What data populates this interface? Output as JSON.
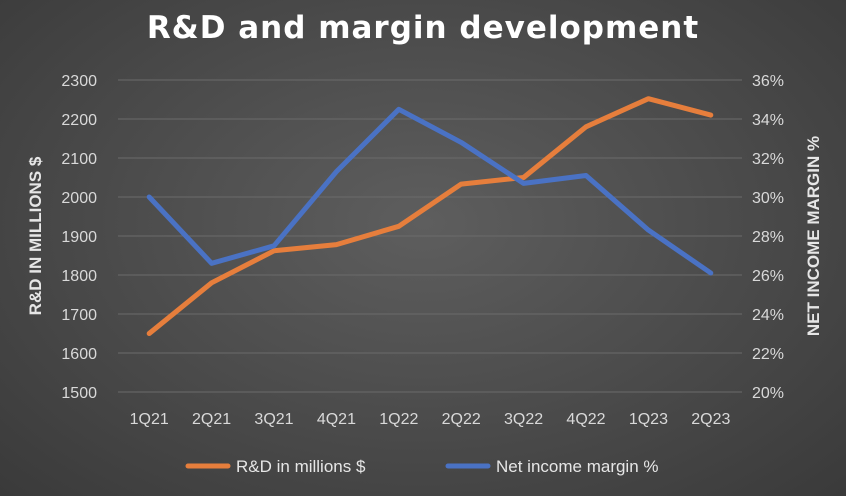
{
  "chart_data": {
    "type": "line",
    "title": "R&D and margin development",
    "categories": [
      "1Q21",
      "2Q21",
      "3Q21",
      "4Q21",
      "1Q22",
      "2Q22",
      "3Q22",
      "4Q22",
      "1Q23",
      "2Q23"
    ],
    "ylabel_left": "R&D IN MILLIONS $",
    "ylabel_right": "NET INCOME MARGIN %",
    "ylim_left": [
      1500,
      2300
    ],
    "ylim_right": [
      20,
      36
    ],
    "yticks_left": [
      "1500",
      "1600",
      "1700",
      "1800",
      "1900",
      "2000",
      "2100",
      "2200",
      "2300"
    ],
    "yticks_right": [
      "20%",
      "22%",
      "24%",
      "26%",
      "28%",
      "30%",
      "32%",
      "34%",
      "36%"
    ],
    "grid": true,
    "legend_position": "bottom",
    "series": [
      {
        "name": "R&D in millions $",
        "axis": "left",
        "color": "#E67E3C",
        "values": [
          1650,
          1780,
          1862,
          1878,
          1925,
          2033,
          2050,
          2180,
          2252,
          2210
        ]
      },
      {
        "name": "Net income margin %",
        "axis": "right",
        "color": "#4A72C4",
        "values": [
          30.0,
          26.6,
          27.5,
          31.3,
          34.5,
          32.8,
          30.7,
          31.1,
          28.3,
          26.1
        ]
      }
    ]
  }
}
